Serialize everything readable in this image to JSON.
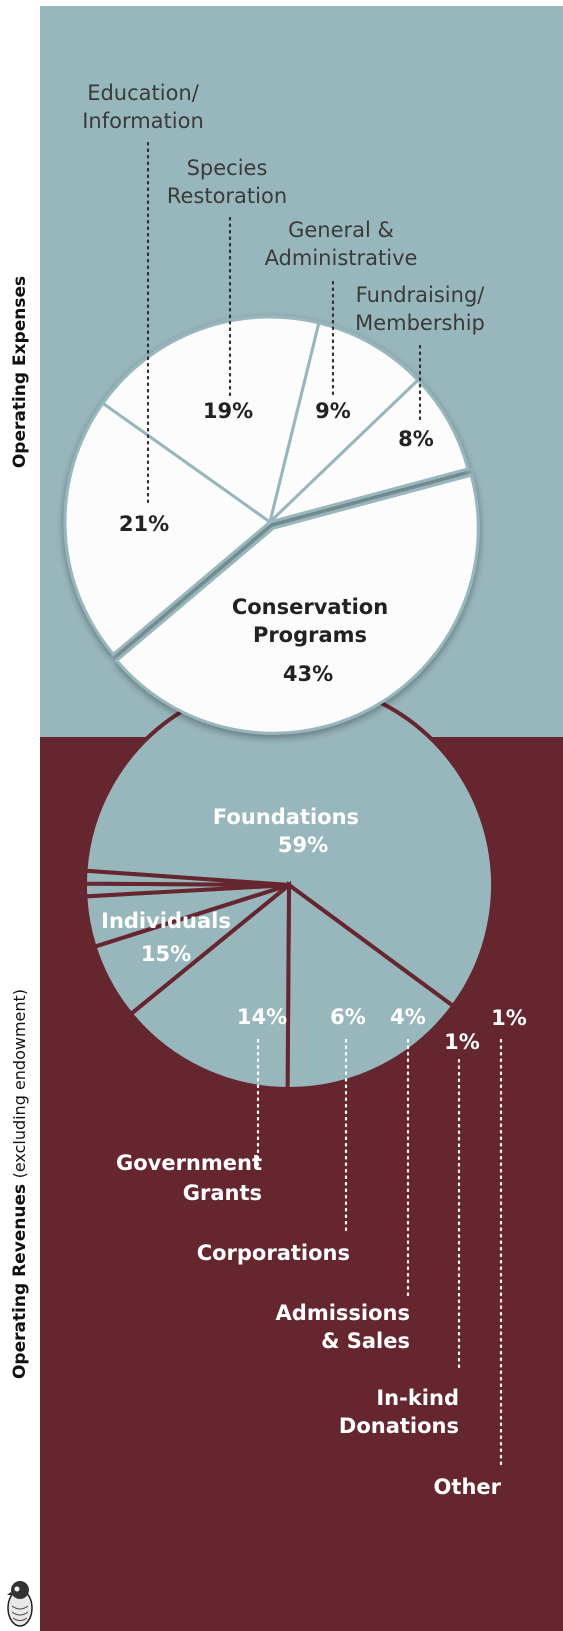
{
  "labels": {
    "expenses_title": "Operating Expenses",
    "revenues_title_bold": "Operating Revenues",
    "revenues_title_light": "(excluding endowment)"
  },
  "colors": {
    "expense_bg": "#98b7bc",
    "revenue_bg": "#662630",
    "expense_slice": "#fcfcfc",
    "expense_divider": "#98b7bc",
    "revenue_slice": "#98b7bc",
    "revenue_divider": "#662630",
    "expense_text_dark": "#222222",
    "expense_text_label": "#3a3a3a",
    "revenue_text": "#ffffff"
  },
  "chart_data": [
    {
      "type": "pie",
      "title": "Operating Expenses",
      "categories": [
        "Conservation Programs",
        "Education/ Information",
        "Species Restoration",
        "General & Administrative",
        "Fundraising/ Membership"
      ],
      "values": [
        43,
        21,
        19,
        9,
        8
      ],
      "value_labels": [
        "43%",
        "21%",
        "19%",
        "9%",
        "8%"
      ],
      "category_labels": [
        [
          "Conservation",
          "Programs"
        ],
        [
          "Education/",
          "Information"
        ],
        [
          "Species",
          "Restoration"
        ],
        [
          "General &",
          "Administrative"
        ],
        [
          "Fundraising/",
          "Membership"
        ]
      ],
      "exploded": "Conservation Programs"
    },
    {
      "type": "pie",
      "title": "Operating Revenues (excluding endowment)",
      "categories": [
        "Foundations",
        "Individuals",
        "Government Grants",
        "Corporations",
        "Admissions & Sales",
        "In-kind Donations",
        "Other"
      ],
      "values": [
        59,
        15,
        14,
        6,
        4,
        1,
        1
      ],
      "value_labels": [
        "59%",
        "15%",
        "14%",
        "6%",
        "4%",
        "1%",
        "1%"
      ],
      "category_labels": [
        [
          "Foundations"
        ],
        [
          "Individuals"
        ],
        [
          "Government",
          "Grants"
        ],
        [
          "Corporations"
        ],
        [
          "Admissions",
          "& Sales"
        ],
        [
          "In-kind",
          "Donations"
        ],
        [
          "Other"
        ]
      ]
    }
  ]
}
